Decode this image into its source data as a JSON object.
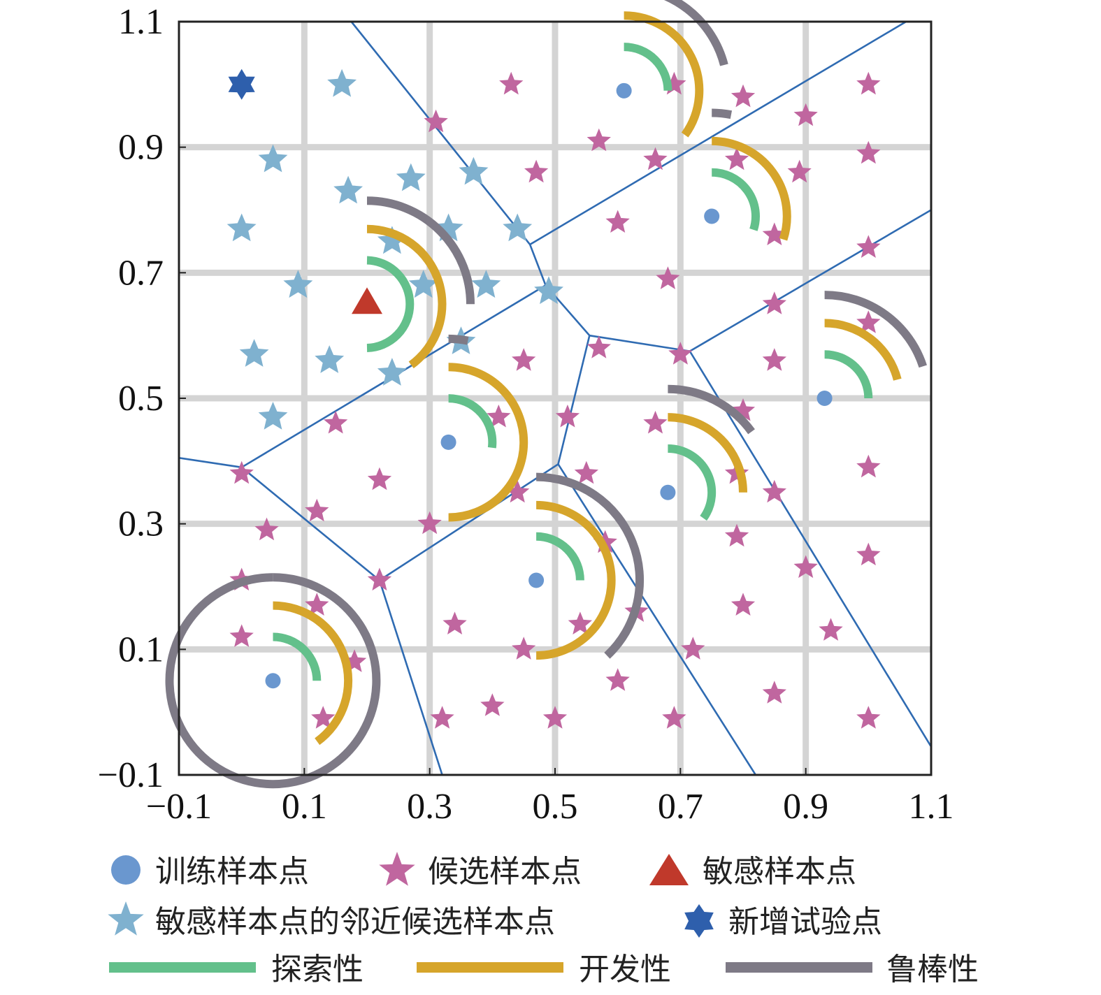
{
  "chart_data": {
    "type": "scatter",
    "xlim": [
      -0.1,
      1.1
    ],
    "ylim": [
      -0.1,
      1.1
    ],
    "ticks": [
      -0.1,
      0.1,
      0.3,
      0.5,
      0.7,
      0.9,
      1.1
    ],
    "tick_labels": [
      "−0.1",
      "0.1",
      "0.3",
      "0.5",
      "0.7",
      "0.9",
      "1.1"
    ],
    "grid": true,
    "legend_position": "bottom",
    "colors": {
      "training": "#6a97cf",
      "candidate": "#c0669f",
      "sensitive": "#c0392b",
      "neighbor": "#7fb1cf",
      "new_point": "#2e5fac",
      "exploration": "#63c08b",
      "exploitation": "#d6a52b",
      "robustness": "#7e7a86",
      "voronoi": "#2f6bb2",
      "grid": "#d4d4d4"
    },
    "legend": {
      "training": "训练样本点",
      "candidate": "候选样本点",
      "sensitive": "敏感样本点",
      "neighbor": "敏感样本点的邻近候选样本点",
      "new_point": "新增试验点",
      "exploration": "探索性",
      "exploitation": "开发性",
      "robustness": "鲁棒性"
    },
    "training_points": [
      [
        0.05,
        0.05
      ],
      [
        0.33,
        0.43
      ],
      [
        0.47,
        0.21
      ],
      [
        0.61,
        0.99
      ],
      [
        0.68,
        0.35
      ],
      [
        0.75,
        0.79
      ],
      [
        0.93,
        0.5
      ]
    ],
    "sensitive_point": [
      0.2,
      0.65
    ],
    "new_point": [
      0.0,
      1.0
    ],
    "candidate_points": [
      [
        0.31,
        0.94
      ],
      [
        0.43,
        1.0
      ],
      [
        0.57,
        0.91
      ],
      [
        0.47,
        0.86
      ],
      [
        0.69,
        1.0
      ],
      [
        0.8,
        0.98
      ],
      [
        0.9,
        0.95
      ],
      [
        1.0,
        1.0
      ],
      [
        0.66,
        0.88
      ],
      [
        0.79,
        0.88
      ],
      [
        0.89,
        0.86
      ],
      [
        1.0,
        0.89
      ],
      [
        0.6,
        0.78
      ],
      [
        0.85,
        0.76
      ],
      [
        1.0,
        0.74
      ],
      [
        0.68,
        0.69
      ],
      [
        0.85,
        0.65
      ],
      [
        1.0,
        0.62
      ],
      [
        0.45,
        0.56
      ],
      [
        0.57,
        0.58
      ],
      [
        0.7,
        0.57
      ],
      [
        0.85,
        0.56
      ],
      [
        0.15,
        0.46
      ],
      [
        0.41,
        0.47
      ],
      [
        0.52,
        0.47
      ],
      [
        0.66,
        0.46
      ],
      [
        0.8,
        0.48
      ],
      [
        0.0,
        0.38
      ],
      [
        0.22,
        0.37
      ],
      [
        0.44,
        0.35
      ],
      [
        0.55,
        0.38
      ],
      [
        0.79,
        0.38
      ],
      [
        0.85,
        0.35
      ],
      [
        1.0,
        0.39
      ],
      [
        0.12,
        0.32
      ],
      [
        0.04,
        0.29
      ],
      [
        0.3,
        0.3
      ],
      [
        0.58,
        0.27
      ],
      [
        0.79,
        0.28
      ],
      [
        0.9,
        0.23
      ],
      [
        1.0,
        0.25
      ],
      [
        0.0,
        0.21
      ],
      [
        0.22,
        0.21
      ],
      [
        0.8,
        0.17
      ],
      [
        0.12,
        0.17
      ],
      [
        0.34,
        0.14
      ],
      [
        0.54,
        0.14
      ],
      [
        0.63,
        0.16
      ],
      [
        0.0,
        0.12
      ],
      [
        0.45,
        0.1
      ],
      [
        0.72,
        0.1
      ],
      [
        0.94,
        0.13
      ],
      [
        0.18,
        0.08
      ],
      [
        0.6,
        0.05
      ],
      [
        0.85,
        0.03
      ],
      [
        0.13,
        -0.01
      ],
      [
        0.32,
        -0.01
      ],
      [
        0.4,
        0.01
      ],
      [
        0.5,
        -0.01
      ],
      [
        0.69,
        -0.01
      ],
      [
        1.0,
        -0.01
      ]
    ],
    "neighbor_points": [
      [
        0.16,
        1.0
      ],
      [
        0.05,
        0.88
      ],
      [
        0.17,
        0.83
      ],
      [
        0.27,
        0.85
      ],
      [
        0.37,
        0.86
      ],
      [
        0.0,
        0.77
      ],
      [
        0.24,
        0.75
      ],
      [
        0.33,
        0.77
      ],
      [
        0.44,
        0.77
      ],
      [
        0.09,
        0.68
      ],
      [
        0.29,
        0.68
      ],
      [
        0.39,
        0.68
      ],
      [
        0.49,
        0.67
      ],
      [
        0.35,
        0.59
      ],
      [
        0.02,
        0.57
      ],
      [
        0.14,
        0.56
      ],
      [
        0.24,
        0.54
      ],
      [
        0.05,
        0.47
      ]
    ],
    "voronoi_segments": [
      [
        [
          0.175,
          1.1
        ],
        [
          0.46,
          0.745
        ]
      ],
      [
        [
          0.46,
          0.745
        ],
        [
          1.06,
          1.1
        ]
      ],
      [
        [
          0.46,
          0.745
        ],
        [
          0.485,
          0.68
        ]
      ],
      [
        [
          0.485,
          0.68
        ],
        [
          0.555,
          0.6
        ]
      ],
      [
        [
          0.485,
          0.68
        ],
        [
          0.0,
          0.39
        ]
      ],
      [
        [
          0.555,
          0.6
        ],
        [
          0.715,
          0.575
        ]
      ],
      [
        [
          0.715,
          0.575
        ],
        [
          1.1,
          0.8
        ]
      ],
      [
        [
          0.715,
          0.575
        ],
        [
          1.1,
          -0.055
        ]
      ],
      [
        [
          0.555,
          0.6
        ],
        [
          0.505,
          0.395
        ]
      ],
      [
        [
          0.505,
          0.395
        ],
        [
          0.22,
          0.21
        ]
      ],
      [
        [
          0.505,
          0.395
        ],
        [
          0.82,
          -0.1
        ]
      ],
      [
        [
          0.0,
          0.39
        ],
        [
          -0.1,
          0.405
        ]
      ],
      [
        [
          0.0,
          0.39
        ],
        [
          0.22,
          0.21
        ]
      ],
      [
        [
          0.22,
          0.21
        ],
        [
          0.32,
          -0.1
        ]
      ]
    ],
    "indicator_arcs": [
      {
        "center": [
          0.05,
          0.05
        ],
        "exploration": 0.25,
        "exploitation": 0.4,
        "robustness": 1.0
      },
      {
        "center": [
          0.2,
          0.65
        ],
        "exploration": 0.5,
        "exploitation": 0.4,
        "robustness": 0.25
      },
      {
        "center": [
          0.33,
          0.43
        ],
        "exploration": 0.27,
        "exploitation": 0.5,
        "robustness": 0.03
      },
      {
        "center": [
          0.47,
          0.21
        ],
        "exploration": 0.25,
        "exploitation": 0.5,
        "robustness": 0.38
      },
      {
        "center": [
          0.61,
          0.99
        ],
        "exploration": 0.25,
        "exploitation": 0.35,
        "robustness": 0.21
      },
      {
        "center": [
          0.68,
          0.35
        ],
        "exploration": 0.35,
        "exploitation": 0.25,
        "robustness": 0.15
      },
      {
        "center": [
          0.75,
          0.79
        ],
        "exploration": 0.3,
        "exploitation": 0.3,
        "robustness": 0.03
      },
      {
        "center": [
          0.93,
          0.5
        ],
        "exploration": 0.25,
        "exploitation": 0.21,
        "robustness": 0.2
      }
    ]
  }
}
